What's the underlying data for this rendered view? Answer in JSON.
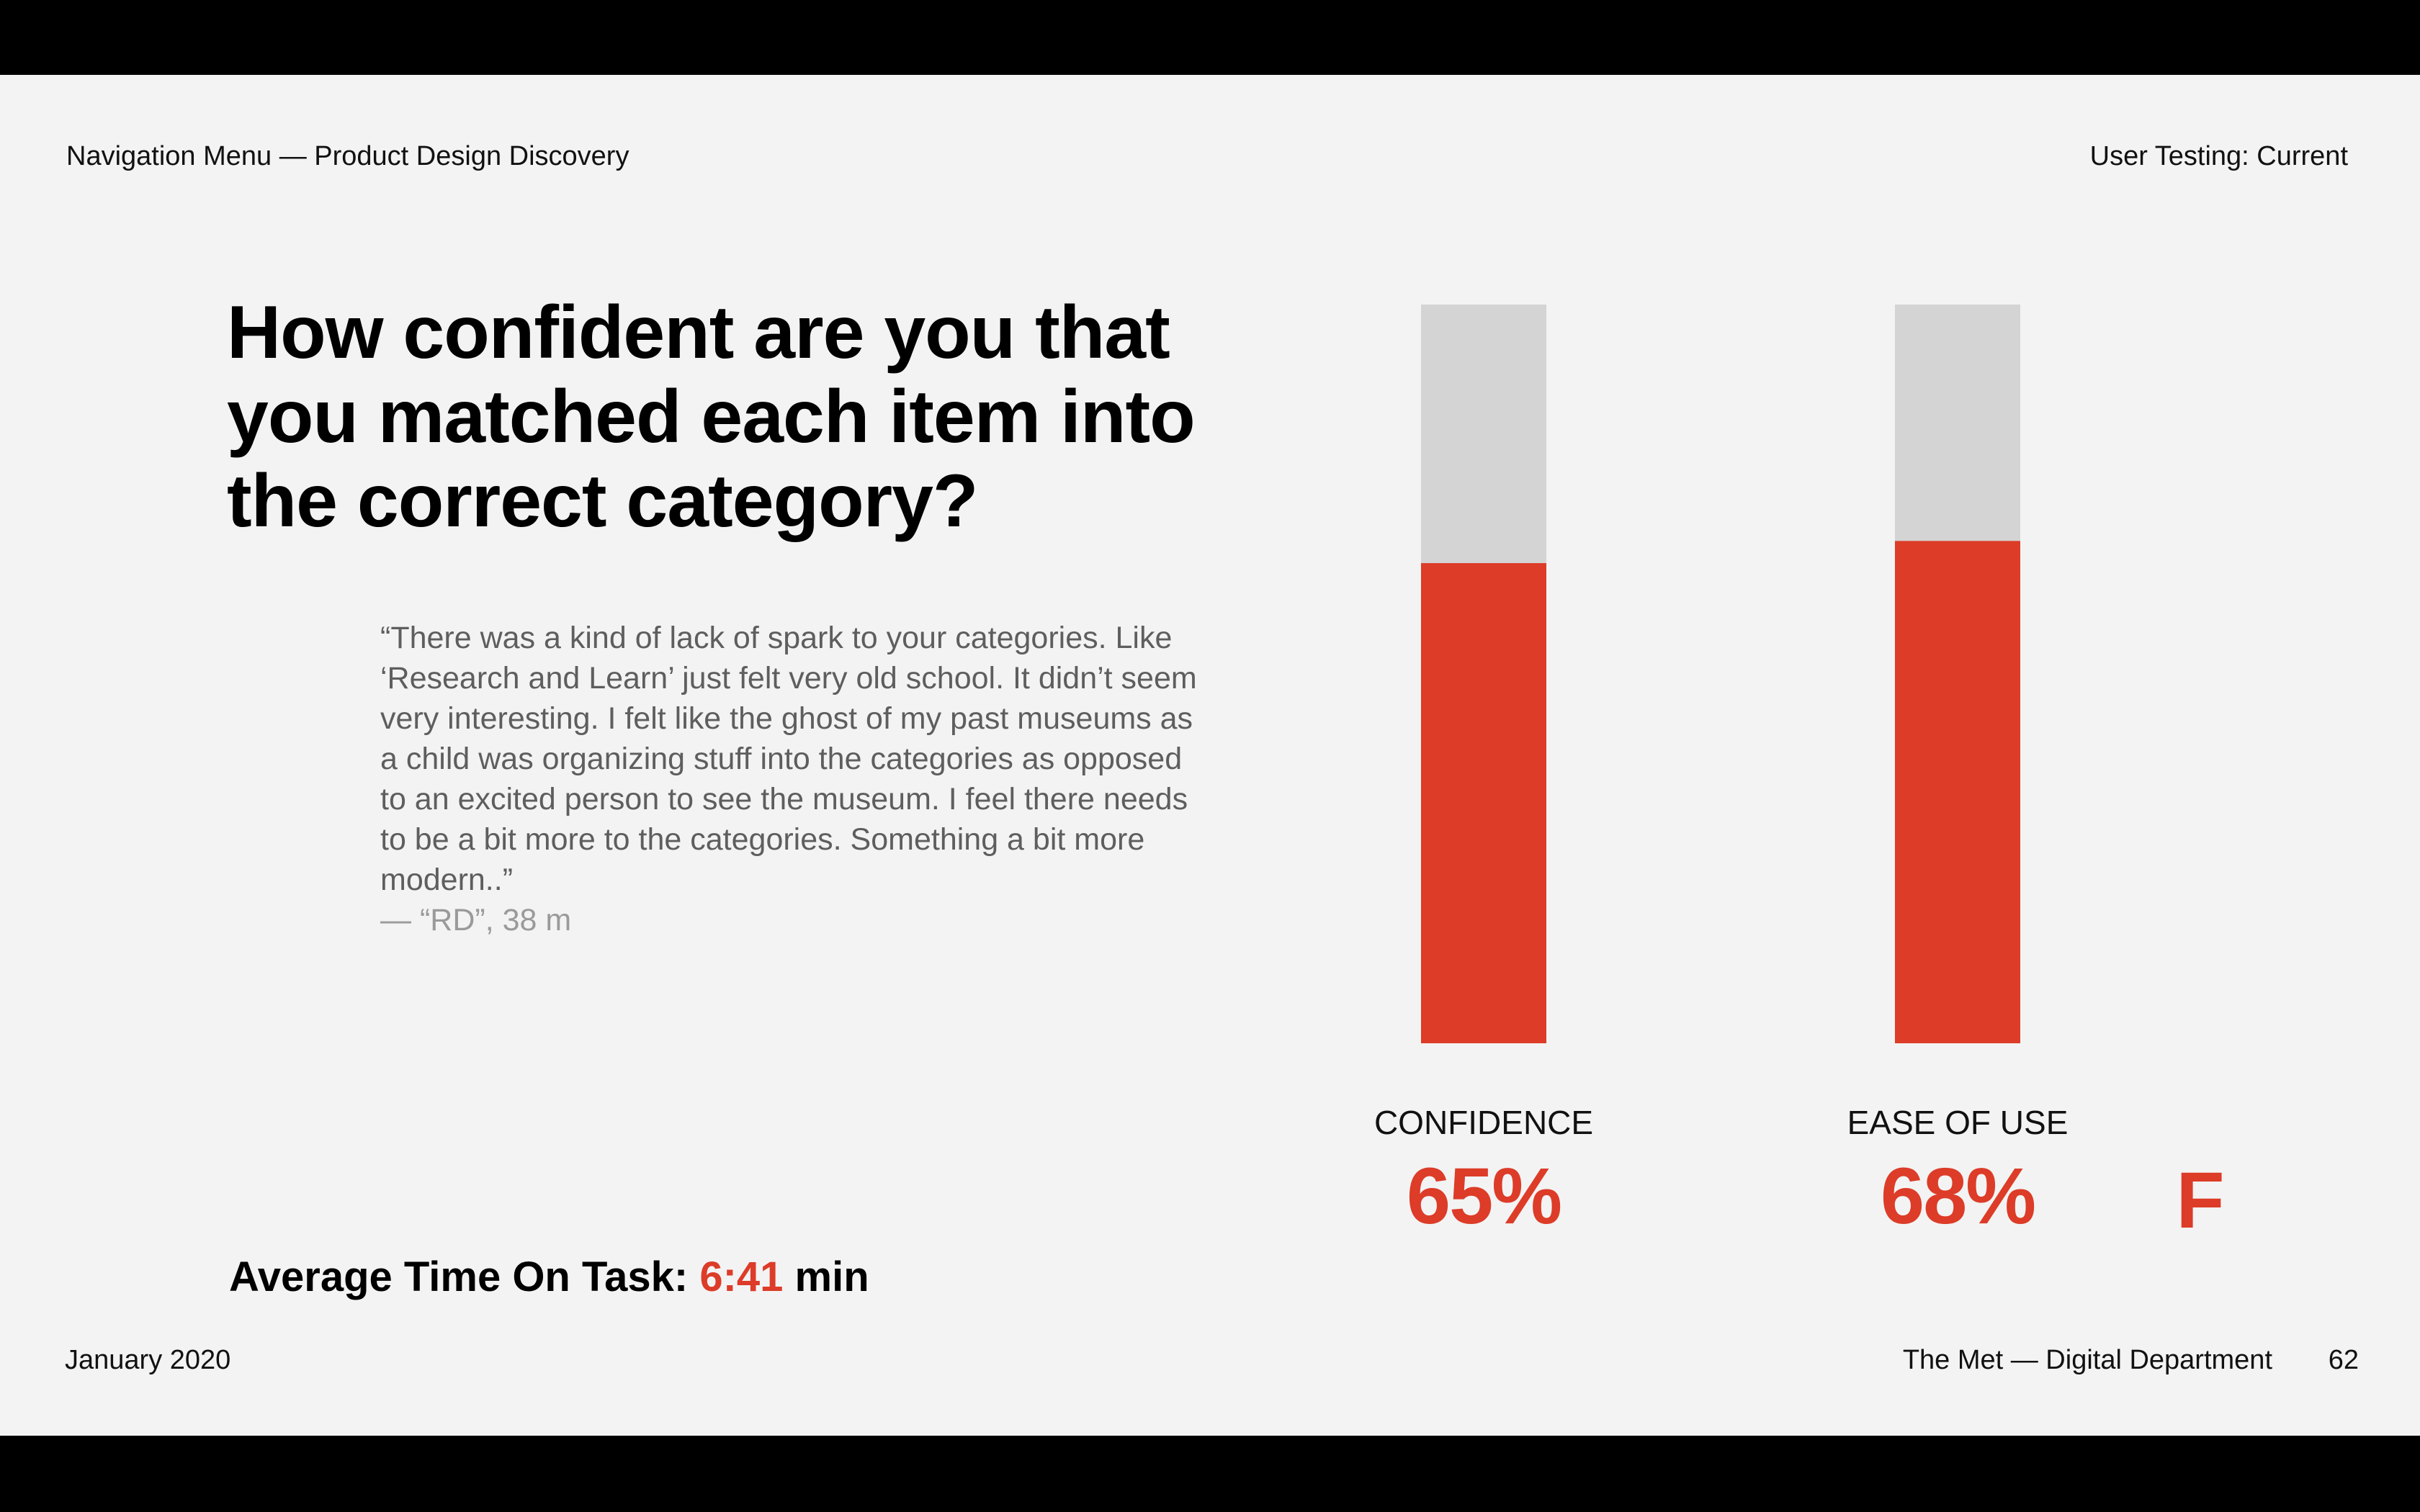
{
  "header": {
    "left": "Navigation Menu — Product Design Discovery",
    "right": "User Testing: Current"
  },
  "headline": "How confident are you that you matched each item into the correct category?",
  "quote": {
    "text": "“There was a kind of lack of spark to your categories. Like ‘Research and Learn’ just felt very old school. It didn’t seem very interesting. I felt like the ghost of my past museums as a child was organizing stuff into the categories as opposed to an excited person to see the museum. I feel there needs to be a bit more to the categories. Something a bit more modern..”",
    "attribution": "— “RD”, 38 m"
  },
  "average_time": {
    "label": "Average Time On Task:",
    "value": "6:41",
    "unit": "min"
  },
  "grade": "F",
  "colors": {
    "accent": "#dc3c28",
    "track": "#d4d4d4",
    "background": "#f3f3f3"
  },
  "chart_data": {
    "type": "bar",
    "categories": [
      "CONFIDENCE",
      "EASE OF USE"
    ],
    "values": [
      65,
      68
    ],
    "value_labels": [
      "65%",
      "68%"
    ],
    "ylim": [
      0,
      100
    ],
    "title": "",
    "xlabel": "",
    "ylabel": ""
  },
  "footer": {
    "date": "January 2020",
    "org": "The Met — Digital Department",
    "page": "62"
  }
}
